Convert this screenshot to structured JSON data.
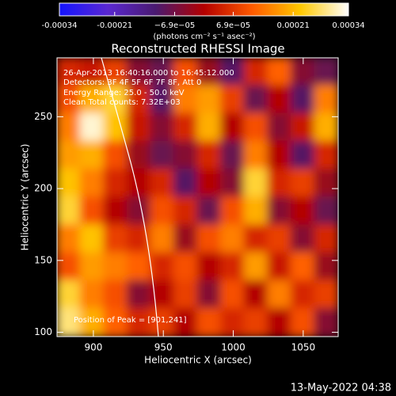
{
  "chart_data": {
    "type": "heatmap",
    "title": "Reconstructed RHESSI Image",
    "annotations": [
      "26-Apr-2013 16:40:16.000 to 16:45:12.000",
      "Detectors: 3F 4F 5F 6F 7F 8F, Att 0",
      "Energy Range: 25.0 - 50.0 keV",
      "Clean     Total counts: 7.32E+03"
    ],
    "peak_label": "Position of Peak = [901,241]",
    "x_label": "Heliocentric X (arcsec)",
    "y_label": "Heliocentric Y (arcsec)",
    "colorbar_label": "(photons cm⁻² s⁻¹ asec⁻²)",
    "footer": "13-May-2022 04:38",
    "xlim": [
      874,
      1075
    ],
    "ylim": [
      97,
      291
    ],
    "xticks": [
      900,
      950,
      1000,
      1050
    ],
    "yticks": [
      100,
      150,
      200,
      250
    ],
    "zlim": [
      -0.00034,
      0.00034
    ],
    "zticks": [
      -0.00034,
      -0.00021,
      {
        "value": -6.9e-05,
        "label": "−6.9e−05"
      },
      {
        "value": 6.9e-05,
        "label": "6.9e−05"
      },
      0.00021,
      0.00034
    ],
    "colorscale": [
      "#1414ff",
      "#5a28d2",
      "#4a1a70",
      "#b40000",
      "#ff5a00",
      "#ffc800",
      "#ffffff"
    ],
    "z": [
      [
        5e-05,
        3e-05,
        8e-05,
        -5e-05,
        -8e-05,
        0.0001,
        -3e-05,
        -0.0001,
        5e-05,
        0.00012,
        -5e-05,
        -8e-05
      ],
      [
        0.0001,
        0.0002,
        0.00025,
        5e-05,
        -0.0001,
        0.00015,
        0.00018,
        8e-05,
        -8e-05,
        0,
        -0.0001,
        0.00015
      ],
      [
        0.00015,
        0.00032,
        0.00022,
        3e-05,
        -5e-05,
        5e-05,
        0.0002,
        0,
        0.0001,
        -5e-05,
        3e-05,
        0.0002
      ],
      [
        0.00018,
        0.0002,
        0.0001,
        -3e-05,
        -8e-05,
        -5e-05,
        5e-05,
        -8e-05,
        0.00015,
        0,
        -0.0001,
        5e-05
      ],
      [
        0.00022,
        0.00015,
        5e-05,
        0,
        5e-05,
        -0.0001,
        0,
        -5e-05,
        0.00025,
        5e-05,
        8e-05,
        -3e-05
      ],
      [
        0.00025,
        0.0001,
        0,
        -5e-05,
        0.0001,
        5e-05,
        -8e-05,
        0.0001,
        0.0002,
        -5e-05,
        0,
        -8e-05
      ],
      [
        0.00015,
        0.00022,
        8e-05,
        5e-05,
        0.00015,
        -3e-05,
        0.0001,
        0.00015,
        5e-05,
        8e-05,
        -5e-05,
        5e-05
      ],
      [
        0.0001,
        0.00018,
        0.00015,
        0.00012,
        5e-05,
        0.0001,
        0,
        5e-05,
        0.00018,
        3e-05,
        0.00012,
        -3e-05
      ],
      [
        0.00025,
        0.00015,
        0.0001,
        -5e-05,
        0,
        8e-05,
        -5e-05,
        0.0001,
        0,
        0.00015,
        5e-05,
        8e-05
      ],
      [
        0.00028,
        0.0002,
        0.00012,
        5e-05,
        8e-05,
        0,
        0.0001,
        5e-05,
        8e-05,
        0,
        0.0001,
        -5e-05
      ]
    ]
  }
}
